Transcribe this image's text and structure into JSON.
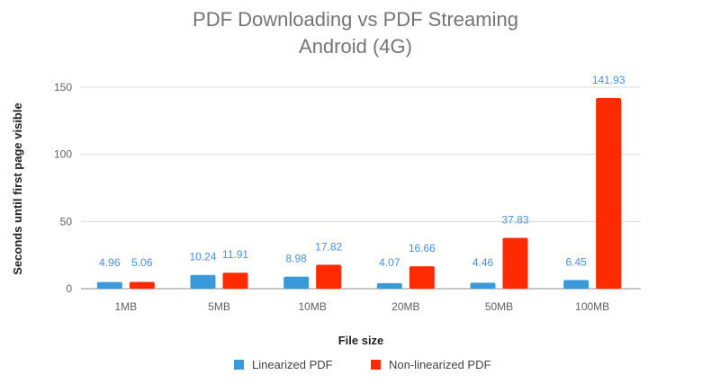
{
  "chart_data": {
    "type": "bar",
    "title": "PDF Downloading vs PDF Streaming",
    "subtitle": "Android (4G)",
    "xlabel": "File size",
    "ylabel": "Seconds until first page visible",
    "categories": [
      "1MB",
      "5MB",
      "10MB",
      "20MB",
      "50MB",
      "100MB"
    ],
    "series": [
      {
        "name": "Linearized PDF",
        "color": "#3a9ad9",
        "values": [
          4.96,
          10.24,
          8.98,
          4.07,
          4.46,
          6.45
        ]
      },
      {
        "name": "Non-linearized PDF",
        "color": "#ff2a00",
        "values": [
          5.06,
          11.91,
          17.82,
          16.66,
          37.83,
          141.93
        ]
      }
    ],
    "ylim": [
      0,
      150
    ],
    "yticks": [
      0,
      50,
      100,
      150
    ],
    "grid": true,
    "legend": "bottom",
    "data_label_color": "#4a90d9"
  }
}
